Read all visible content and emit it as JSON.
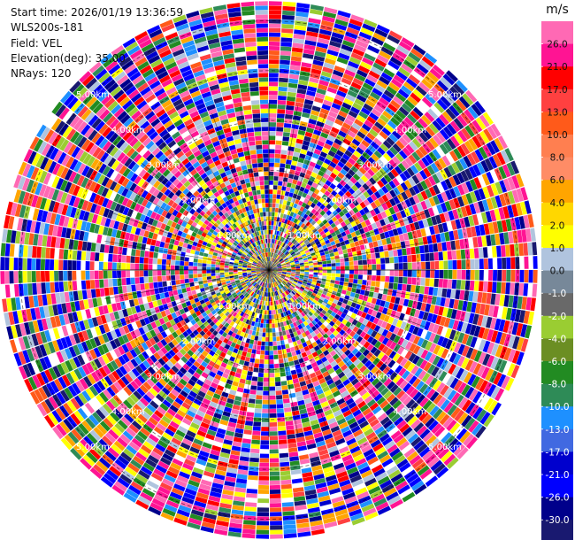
{
  "header": {
    "start_time": "Start time: 2026/01/19 13:36:59",
    "instrument": "WLS200s-181",
    "field": "Field: VEL",
    "elevation": "Elevation(deg): 35.00",
    "nrays": "NRays: 120"
  },
  "chart_data": {
    "type": "heatmap",
    "projection": "polar-ppi",
    "field": "VEL",
    "units": "m/s",
    "nrays": 120,
    "elevation_deg": 35.0,
    "max_range_km": 5.4,
    "range_rings_km": [
      1,
      2,
      3,
      4,
      5
    ],
    "range_labels": [
      "1.00km",
      "2.00km",
      "3.00km",
      "4.00km",
      "5.00km"
    ],
    "colorbar": {
      "unit_label": "m/s",
      "ticks": [
        "26.0",
        "21.0",
        "17.0",
        "13.0",
        "10.0",
        "8.0",
        "6.0",
        "4.0",
        "2.0",
        "1.0",
        "0.0",
        "-1.0",
        "-2.0",
        "-4.0",
        "-6.0",
        "-8.0",
        "-10.0",
        "-13.0",
        "-17.0",
        "-21.0",
        "-26.0",
        "-30.0"
      ],
      "colors": [
        "#ff69b4",
        "#ff1493",
        "#ff0000",
        "#ff4040",
        "#ff5a1a",
        "#ff7f50",
        "#ff8c66",
        "#ffa500",
        "#ffd700",
        "#ffff00",
        "#b0c4de",
        "#778899",
        "#696969",
        "#9acd32",
        "#6b8e23",
        "#228b22",
        "#2e8b57",
        "#1e90ff",
        "#4169e1",
        "#0000cd",
        "#0000ff",
        "#00008b",
        "#191970"
      ],
      "vmin": -30.0,
      "vmax": 30.0
    }
  }
}
